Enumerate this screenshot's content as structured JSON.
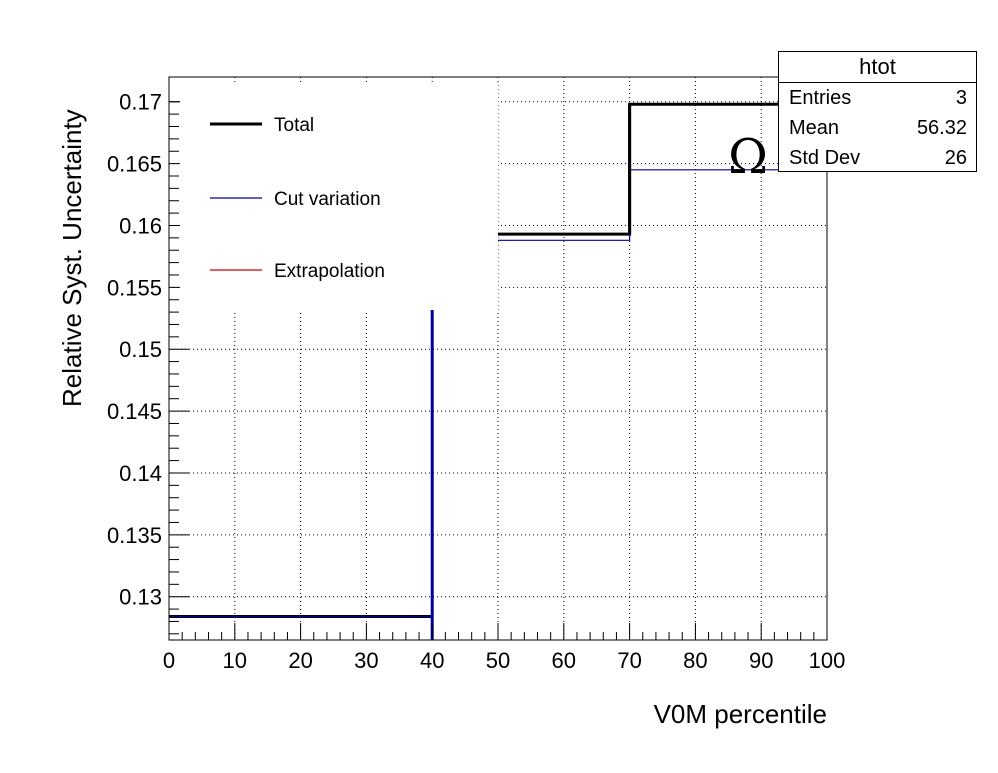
{
  "chart_data": {
    "type": "line",
    "xlabel": "V0M percentile",
    "ylabel": "Relative Syst. Uncertainty",
    "xlim": [
      0,
      100
    ],
    "ylim": [
      0.1265,
      0.172
    ],
    "xticks": [
      0,
      10,
      20,
      30,
      40,
      50,
      60,
      70,
      80,
      90,
      100
    ],
    "xtick_labels": [
      "0",
      "10",
      "20",
      "30",
      "40",
      "50",
      "60",
      "70",
      "80",
      "90",
      "100"
    ],
    "yticks": [
      0.13,
      0.135,
      0.14,
      0.145,
      0.15,
      0.155,
      0.16,
      0.165,
      0.17
    ],
    "ytick_labels": [
      "0.13",
      "0.135",
      "0.14",
      "0.145",
      "0.15",
      "0.155",
      "0.16",
      "0.165",
      "0.17"
    ],
    "grid": true,
    "legend_position": "top-left",
    "annotation": "Ω",
    "series": [
      {
        "name": "Total",
        "color": "#000000",
        "bins": [
          {
            "x0": 0,
            "x1": 40,
            "y": 0.1284
          },
          {
            "x0": 50,
            "x1": 70,
            "y": 0.1593
          },
          {
            "x0": 70,
            "x1": 100,
            "y": 0.1698
          }
        ]
      },
      {
        "name": "Cut variation",
        "color": "#000099",
        "bins": [
          {
            "x0": 0,
            "x1": 40,
            "y": 0.1284
          },
          {
            "x0": 50,
            "x1": 70,
            "y": 0.1588
          },
          {
            "x0": 70,
            "x1": 100,
            "y": 0.1645
          }
        ]
      },
      {
        "name": "Extrapolation",
        "color": "#cc0000",
        "bins": []
      }
    ]
  },
  "stats_box": {
    "title": "htot",
    "rows": [
      {
        "label": "Entries",
        "value": "3"
      },
      {
        "label": "Mean",
        "value": "56.32"
      },
      {
        "label": "Std Dev",
        "value": "26"
      }
    ]
  }
}
